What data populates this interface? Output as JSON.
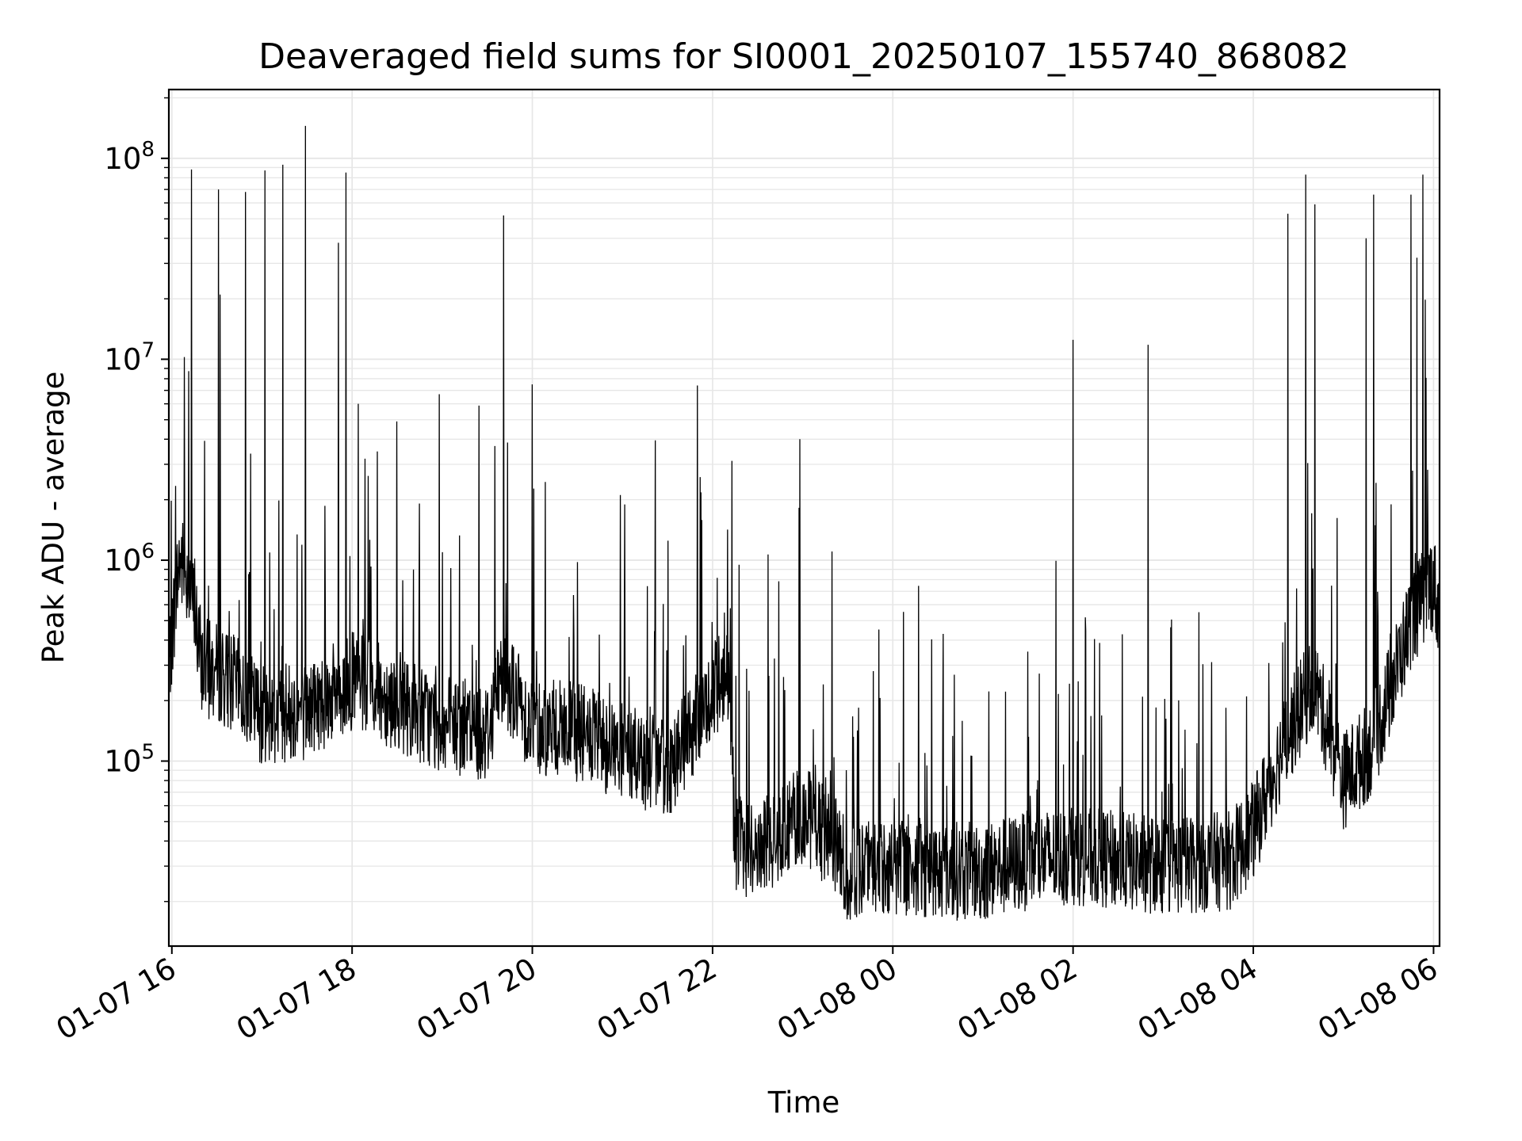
{
  "chart_data": {
    "type": "line",
    "title": "Deaveraged field sums for SI0001_20250107_155740_868082",
    "xlabel": "Time",
    "ylabel": "Peak ADU - average",
    "yscale": "log",
    "ylim": [
      12000,
      220000000
    ],
    "xlim": [
      "2025-01-07 15:58",
      "2025-01-08 06:04"
    ],
    "grid": true,
    "line_color": "#000000",
    "grid_color": "#e6e6e6",
    "x_ticks": [
      {
        "value": "2025-01-07 16:00",
        "label": "01-07 16"
      },
      {
        "value": "2025-01-07 18:00",
        "label": "01-07 18"
      },
      {
        "value": "2025-01-07 20:00",
        "label": "01-07 20"
      },
      {
        "value": "2025-01-07 22:00",
        "label": "01-07 22"
      },
      {
        "value": "2025-01-08 00:00",
        "label": "01-08 00"
      },
      {
        "value": "2025-01-08 02:00",
        "label": "01-08 02"
      },
      {
        "value": "2025-01-08 04:00",
        "label": "01-08 04"
      },
      {
        "value": "2025-01-08 06:00",
        "label": "01-08 06"
      }
    ],
    "y_ticks": [
      {
        "value": 100000,
        "base": "10",
        "exp": "5"
      },
      {
        "value": 1000000,
        "base": "10",
        "exp": "6"
      },
      {
        "value": 10000000,
        "base": "10",
        "exp": "7"
      },
      {
        "value": 100000000,
        "base": "10",
        "exp": "8"
      }
    ],
    "baseline": [
      {
        "x": "2025-01-07 15:58",
        "y": 300000
      },
      {
        "x": "2025-01-07 16:05",
        "y": 1000000
      },
      {
        "x": "2025-01-07 16:12",
        "y": 800000
      },
      {
        "x": "2025-01-07 16:20",
        "y": 300000
      },
      {
        "x": "2025-01-07 16:40",
        "y": 250000
      },
      {
        "x": "2025-01-07 17:00",
        "y": 170000
      },
      {
        "x": "2025-01-07 17:30",
        "y": 180000
      },
      {
        "x": "2025-01-07 18:00",
        "y": 250000
      },
      {
        "x": "2025-01-07 18:30",
        "y": 200000
      },
      {
        "x": "2025-01-07 19:00",
        "y": 150000
      },
      {
        "x": "2025-01-07 19:30",
        "y": 140000
      },
      {
        "x": "2025-01-07 19:40",
        "y": 280000
      },
      {
        "x": "2025-01-07 20:00",
        "y": 150000
      },
      {
        "x": "2025-01-07 20:30",
        "y": 140000
      },
      {
        "x": "2025-01-07 21:00",
        "y": 110000
      },
      {
        "x": "2025-01-07 21:30",
        "y": 90000
      },
      {
        "x": "2025-01-07 21:55",
        "y": 180000
      },
      {
        "x": "2025-01-07 22:10",
        "y": 300000
      },
      {
        "x": "2025-01-07 22:15",
        "y": 40000
      },
      {
        "x": "2025-01-07 22:30",
        "y": 35000
      },
      {
        "x": "2025-01-07 22:45",
        "y": 45000
      },
      {
        "x": "2025-01-07 23:00",
        "y": 55000
      },
      {
        "x": "2025-01-07 23:20",
        "y": 40000
      },
      {
        "x": "2025-01-07 23:30",
        "y": 28000
      },
      {
        "x": "2025-01-08 00:00",
        "y": 30000
      },
      {
        "x": "2025-01-08 01:00",
        "y": 28000
      },
      {
        "x": "2025-01-08 01:30",
        "y": 32000
      },
      {
        "x": "2025-01-08 02:00",
        "y": 34000
      },
      {
        "x": "2025-01-08 03:00",
        "y": 30000
      },
      {
        "x": "2025-01-08 03:45",
        "y": 32000
      },
      {
        "x": "2025-01-08 04:00",
        "y": 45000
      },
      {
        "x": "2025-01-08 04:20",
        "y": 120000
      },
      {
        "x": "2025-01-08 04:40",
        "y": 250000
      },
      {
        "x": "2025-01-08 05:00",
        "y": 80000
      },
      {
        "x": "2025-01-08 05:20",
        "y": 120000
      },
      {
        "x": "2025-01-08 05:45",
        "y": 500000
      },
      {
        "x": "2025-01-08 06:00",
        "y": 800000
      },
      {
        "x": "2025-01-08 06:04",
        "y": 500000
      }
    ],
    "spikes": [
      {
        "x": "2025-01-07 16:13",
        "y": 88000000
      },
      {
        "x": "2025-01-07 16:31",
        "y": 70000000
      },
      {
        "x": "2025-01-07 16:32",
        "y": 21000000
      },
      {
        "x": "2025-01-07 16:49",
        "y": 68000000
      },
      {
        "x": "2025-01-07 17:02",
        "y": 87000000
      },
      {
        "x": "2025-01-07 17:14",
        "y": 93000000
      },
      {
        "x": "2025-01-07 17:29",
        "y": 145000000
      },
      {
        "x": "2025-01-07 17:51",
        "y": 38000000
      },
      {
        "x": "2025-01-07 17:56",
        "y": 85000000
      },
      {
        "x": "2025-01-07 18:04",
        "y": 6000000
      },
      {
        "x": "2025-01-07 18:58",
        "y": 6700000
      },
      {
        "x": "2025-01-07 19:35",
        "y": 3700000
      },
      {
        "x": "2025-01-07 19:41",
        "y": 52000000
      },
      {
        "x": "2025-01-07 20:00",
        "y": 7500000
      },
      {
        "x": "2025-01-07 21:50",
        "y": 7400000
      },
      {
        "x": "2025-01-07 22:58",
        "y": 4000000
      },
      {
        "x": "2025-01-08 02:00",
        "y": 12500000
      },
      {
        "x": "2025-01-08 02:50",
        "y": 11800000
      },
      {
        "x": "2025-01-08 04:23",
        "y": 53000000
      },
      {
        "x": "2025-01-08 04:35",
        "y": 83000000
      },
      {
        "x": "2025-01-08 04:41",
        "y": 59000000
      },
      {
        "x": "2025-01-08 05:15",
        "y": 40000000
      },
      {
        "x": "2025-01-08 05:20",
        "y": 66000000
      },
      {
        "x": "2025-01-08 05:45",
        "y": 66000000
      },
      {
        "x": "2025-01-08 05:53",
        "y": 83000000
      },
      {
        "x": "2025-01-08 05:49",
        "y": 32000000
      }
    ]
  }
}
